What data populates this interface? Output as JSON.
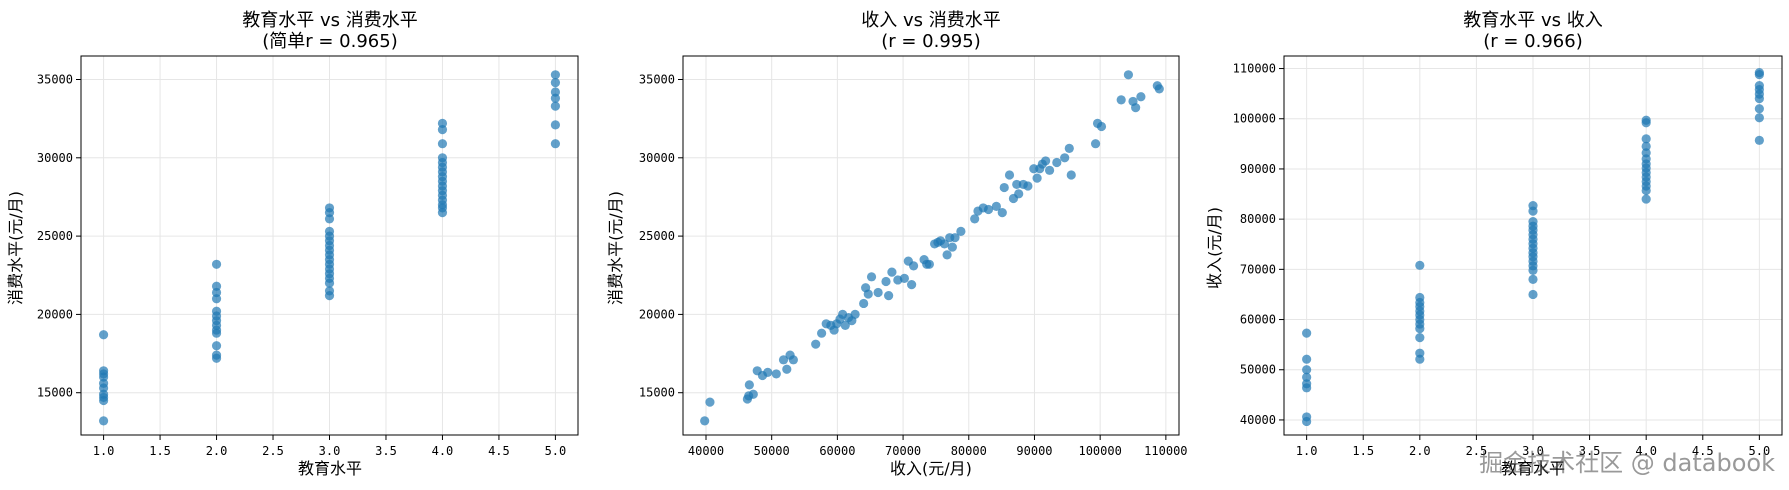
{
  "watermark": "掘金技术社区 @ databook",
  "chart_data": [
    {
      "type": "scatter",
      "title": "教育水平 vs 消费水平",
      "subtitle": "(简单r = 0.965)",
      "xlabel": "教育水平",
      "ylabel": "消费水平(元/月)",
      "xlim": [
        0.8,
        5.2
      ],
      "ylim": [
        12300,
        36500
      ],
      "xticks": [
        1.0,
        1.5,
        2.0,
        2.5,
        3.0,
        3.5,
        4.0,
        4.5,
        5.0
      ],
      "xtick_labels": [
        "1.0",
        "1.5",
        "2.0",
        "2.5",
        "3.0",
        "3.5",
        "4.0",
        "4.5",
        "5.0"
      ],
      "yticks": [
        15000,
        20000,
        25000,
        30000,
        35000
      ],
      "ytick_labels": [
        "15000",
        "20000",
        "25000",
        "30000",
        "35000"
      ],
      "grid": true,
      "point_color": "#1f77b4",
      "points": [
        [
          1,
          18700
        ],
        [
          1,
          16400
        ],
        [
          1,
          16200
        ],
        [
          1,
          16000
        ],
        [
          1,
          15600
        ],
        [
          1,
          15300
        ],
        [
          1,
          14900
        ],
        [
          1,
          14700
        ],
        [
          1,
          14500
        ],
        [
          1,
          13200
        ],
        [
          2,
          23200
        ],
        [
          2,
          21800
        ],
        [
          2,
          21400
        ],
        [
          2,
          21000
        ],
        [
          2,
          20200
        ],
        [
          2,
          19900
        ],
        [
          2,
          19600
        ],
        [
          2,
          19300
        ],
        [
          2,
          19000
        ],
        [
          2,
          18800
        ],
        [
          2,
          18000
        ],
        [
          2,
          17400
        ],
        [
          2,
          17200
        ],
        [
          3,
          26800
        ],
        [
          3,
          26500
        ],
        [
          3,
          26100
        ],
        [
          3,
          25300
        ],
        [
          3,
          25000
        ],
        [
          3,
          24700
        ],
        [
          3,
          24400
        ],
        [
          3,
          24100
        ],
        [
          3,
          23800
        ],
        [
          3,
          23500
        ],
        [
          3,
          23200
        ],
        [
          3,
          22900
        ],
        [
          3,
          22600
        ],
        [
          3,
          22300
        ],
        [
          3,
          22000
        ],
        [
          3,
          21500
        ],
        [
          3,
          21200
        ],
        [
          4,
          32200
        ],
        [
          4,
          31800
        ],
        [
          4,
          30900
        ],
        [
          4,
          30000
        ],
        [
          4,
          29700
        ],
        [
          4,
          29400
        ],
        [
          4,
          29100
        ],
        [
          4,
          28800
        ],
        [
          4,
          28500
        ],
        [
          4,
          28200
        ],
        [
          4,
          27900
        ],
        [
          4,
          27600
        ],
        [
          4,
          27300
        ],
        [
          4,
          27000
        ],
        [
          4,
          26800
        ],
        [
          4,
          26500
        ],
        [
          5,
          35300
        ],
        [
          5,
          34800
        ],
        [
          5,
          34200
        ],
        [
          5,
          33800
        ],
        [
          5,
          33300
        ],
        [
          5,
          32100
        ],
        [
          5,
          30900
        ]
      ]
    },
    {
      "type": "scatter",
      "title": "收入 vs 消费水平",
      "subtitle": "(r = 0.995)",
      "xlabel": "收入(元/月)",
      "ylabel": "消费水平(元/月)",
      "xlim": [
        36500,
        112000
      ],
      "ylim": [
        12300,
        36500
      ],
      "xticks": [
        40000,
        50000,
        60000,
        70000,
        80000,
        90000,
        100000,
        110000
      ],
      "xtick_labels": [
        "40000",
        "50000",
        "60000",
        "70000",
        "80000",
        "90000",
        "100000",
        "110000"
      ],
      "yticks": [
        15000,
        20000,
        25000,
        30000,
        35000
      ],
      "ytick_labels": [
        "15000",
        "20000",
        "25000",
        "30000",
        "35000"
      ],
      "grid": true,
      "point_color": "#1f77b4",
      "points": [
        [
          39800,
          13200
        ],
        [
          40600,
          14400
        ],
        [
          46300,
          14600
        ],
        [
          46500,
          14800
        ],
        [
          46600,
          15500
        ],
        [
          47200,
          14900
        ],
        [
          47800,
          16400
        ],
        [
          48600,
          16100
        ],
        [
          49400,
          16300
        ],
        [
          50700,
          16200
        ],
        [
          51800,
          17100
        ],
        [
          52300,
          16500
        ],
        [
          52800,
          17400
        ],
        [
          53300,
          17100
        ],
        [
          56700,
          18100
        ],
        [
          57600,
          18800
        ],
        [
          58300,
          19400
        ],
        [
          59000,
          19300
        ],
        [
          59500,
          19000
        ],
        [
          59900,
          19400
        ],
        [
          60400,
          19700
        ],
        [
          60800,
          20000
        ],
        [
          61200,
          19300
        ],
        [
          61700,
          19800
        ],
        [
          62200,
          19600
        ],
        [
          62700,
          20000
        ],
        [
          64000,
          20700
        ],
        [
          64300,
          21700
        ],
        [
          64700,
          21300
        ],
        [
          65200,
          22400
        ],
        [
          66200,
          21400
        ],
        [
          67400,
          22100
        ],
        [
          67800,
          21200
        ],
        [
          68300,
          22700
        ],
        [
          69200,
          22200
        ],
        [
          70200,
          22300
        ],
        [
          70800,
          23400
        ],
        [
          71300,
          21900
        ],
        [
          71600,
          23100
        ],
        [
          73200,
          23500
        ],
        [
          73600,
          23200
        ],
        [
          74000,
          23200
        ],
        [
          74800,
          24500
        ],
        [
          75300,
          24600
        ],
        [
          75700,
          24700
        ],
        [
          76300,
          24500
        ],
        [
          76700,
          23800
        ],
        [
          77100,
          24900
        ],
        [
          77500,
          24300
        ],
        [
          77900,
          24900
        ],
        [
          78800,
          25300
        ],
        [
          80900,
          26100
        ],
        [
          81400,
          26600
        ],
        [
          82200,
          26800
        ],
        [
          83000,
          26700
        ],
        [
          84200,
          26900
        ],
        [
          85100,
          26500
        ],
        [
          85400,
          28100
        ],
        [
          86200,
          28900
        ],
        [
          86800,
          27400
        ],
        [
          87300,
          28300
        ],
        [
          87600,
          27700
        ],
        [
          88300,
          28300
        ],
        [
          89000,
          28200
        ],
        [
          89900,
          29300
        ],
        [
          90400,
          28700
        ],
        [
          90800,
          29300
        ],
        [
          91200,
          29600
        ],
        [
          91700,
          29800
        ],
        [
          92300,
          29200
        ],
        [
          93400,
          29700
        ],
        [
          94600,
          30000
        ],
        [
          95300,
          30600
        ],
        [
          95600,
          28900
        ],
        [
          99300,
          30900
        ],
        [
          99600,
          32200
        ],
        [
          100200,
          32000
        ],
        [
          103200,
          33700
        ],
        [
          104300,
          35300
        ],
        [
          105000,
          33600
        ],
        [
          105400,
          33200
        ],
        [
          106200,
          33900
        ],
        [
          108700,
          34600
        ],
        [
          109000,
          34400
        ]
      ]
    },
    {
      "type": "scatter",
      "title": "教育水平 vs 收入",
      "subtitle": "(r = 0.966)",
      "xlabel": "教育水平",
      "ylabel": "收入(元/月)",
      "xlim": [
        0.8,
        5.2
      ],
      "ylim": [
        37000,
        112500
      ],
      "xticks": [
        1.0,
        1.5,
        2.0,
        2.5,
        3.0,
        3.5,
        4.0,
        4.5,
        5.0
      ],
      "xtick_labels": [
        "1.0",
        "1.5",
        "2.0",
        "2.5",
        "3.0",
        "3.5",
        "4.0",
        "4.5",
        "5.0"
      ],
      "yticks": [
        40000,
        50000,
        60000,
        70000,
        80000,
        90000,
        100000,
        110000
      ],
      "ytick_labels": [
        "40000",
        "50000",
        "60000",
        "70000",
        "80000",
        "90000",
        "100000",
        "110000"
      ],
      "grid": true,
      "point_color": "#1f77b4",
      "points": [
        [
          1,
          57300
        ],
        [
          1,
          52100
        ],
        [
          1,
          50000
        ],
        [
          1,
          48500
        ],
        [
          1,
          47200
        ],
        [
          1,
          46400
        ],
        [
          1,
          40600
        ],
        [
          1,
          39700
        ],
        [
          2,
          70800
        ],
        [
          2,
          64400
        ],
        [
          2,
          63400
        ],
        [
          2,
          62600
        ],
        [
          2,
          61700
        ],
        [
          2,
          60900
        ],
        [
          2,
          60000
        ],
        [
          2,
          59100
        ],
        [
          2,
          58200
        ],
        [
          2,
          56400
        ],
        [
          2,
          53300
        ],
        [
          2,
          52100
        ],
        [
          3,
          82700
        ],
        [
          3,
          81600
        ],
        [
          3,
          79500
        ],
        [
          3,
          78600
        ],
        [
          3,
          77800
        ],
        [
          3,
          76900
        ],
        [
          3,
          76000
        ],
        [
          3,
          75100
        ],
        [
          3,
          74200
        ],
        [
          3,
          73300
        ],
        [
          3,
          72500
        ],
        [
          3,
          71600
        ],
        [
          3,
          70700
        ],
        [
          3,
          69800
        ],
        [
          3,
          68000
        ],
        [
          3,
          65000
        ],
        [
          4,
          99700
        ],
        [
          4,
          99200
        ],
        [
          4,
          96000
        ],
        [
          4,
          94500
        ],
        [
          4,
          93200
        ],
        [
          4,
          92000
        ],
        [
          4,
          91000
        ],
        [
          4,
          90200
        ],
        [
          4,
          89300
        ],
        [
          4,
          88400
        ],
        [
          4,
          87500
        ],
        [
          4,
          86600
        ],
        [
          4,
          85700
        ],
        [
          4,
          84000
        ],
        [
          5,
          109200
        ],
        [
          5,
          108800
        ],
        [
          5,
          106600
        ],
        [
          5,
          105800
        ],
        [
          5,
          104900
        ],
        [
          5,
          104000
        ],
        [
          5,
          102000
        ],
        [
          5,
          100200
        ],
        [
          5,
          95700
        ]
      ]
    }
  ]
}
